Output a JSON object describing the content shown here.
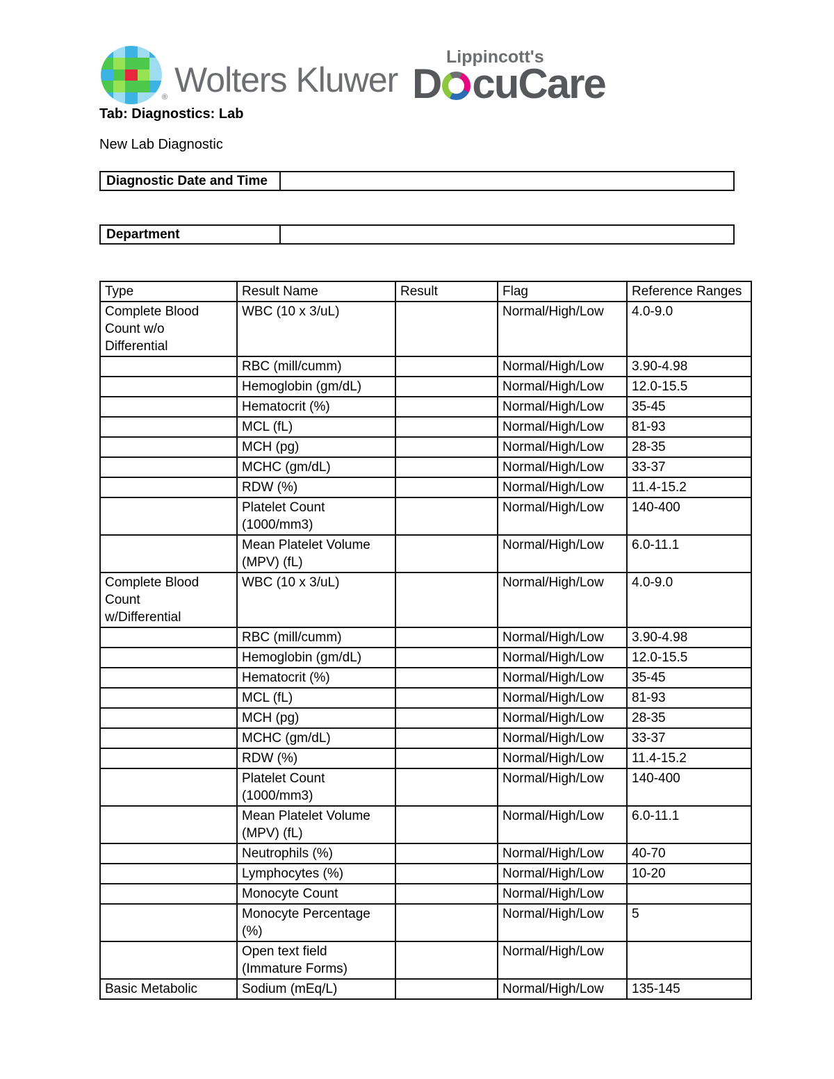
{
  "header": {
    "brand": "Wolters Kluwer",
    "registered": "®",
    "product_top": "Lippincott's",
    "docucare_d": "D",
    "docucare_rest": "cuCare",
    "tab_line": "Tab: Diagnostics: Lab",
    "page_title": "New Lab Diagnostic"
  },
  "logo": {
    "text_gray": "#6d6e71",
    "docucare_gray": "#57585b",
    "ring_colors": [
      "#6f7073",
      "#e5097f",
      "#2a6db5",
      "#8dc63f"
    ],
    "globe_colors": {
      "b": "#3db3e3",
      "lb": "#9edcf2",
      "g": "#4cc84c",
      "lg": "#97e354",
      "r": "#e8283c"
    },
    "globe_pattern": [
      [
        "b",
        "lb",
        "b",
        "lb",
        "b"
      ],
      [
        "g",
        "lg",
        "g",
        "g",
        "lb"
      ],
      [
        "b",
        "g",
        "r",
        "lg",
        "lb"
      ],
      [
        "g",
        "lg",
        "g",
        "g",
        "b"
      ],
      [
        "b",
        "lb",
        "b",
        "lb",
        "lb"
      ]
    ]
  },
  "fields": [
    {
      "label": "Diagnostic Date and Time",
      "value": ""
    },
    {
      "label": "Department",
      "value": ""
    }
  ],
  "table": {
    "columns": [
      "Type",
      "Result Name",
      "Result",
      "Flag",
      "Reference Ranges"
    ],
    "rows": [
      {
        "type": "Complete Blood\nCount w/o\nDifferential",
        "result_name": "WBC (10 x 3/uL)",
        "result": "",
        "flag": "Normal/High/Low",
        "range": "4.0-9.0"
      },
      {
        "type": "",
        "result_name": "RBC (mill/cumm)",
        "result": "",
        "flag": "Normal/High/Low",
        "range": "3.90-4.98"
      },
      {
        "type": "",
        "result_name": "Hemoglobin (gm/dL)",
        "result": "",
        "flag": "Normal/High/Low",
        "range": "12.0-15.5"
      },
      {
        "type": "",
        "result_name": "Hematocrit (%)",
        "result": "",
        "flag": "Normal/High/Low",
        "range": "35-45"
      },
      {
        "type": "",
        "result_name": "MCL (fL)",
        "result": "",
        "flag": "Normal/High/Low",
        "range": "81-93"
      },
      {
        "type": "",
        "result_name": "MCH (pg)",
        "result": "",
        "flag": "Normal/High/Low",
        "range": "28-35"
      },
      {
        "type": "",
        "result_name": "MCHC (gm/dL)",
        "result": "",
        "flag": "Normal/High/Low",
        "range": "33-37"
      },
      {
        "type": "",
        "result_name": "RDW (%)",
        "result": "",
        "flag": "Normal/High/Low",
        "range": "11.4-15.2"
      },
      {
        "type": "",
        "result_name": "Platelet Count\n(1000/mm3)",
        "result": "",
        "flag": "Normal/High/Low",
        "range": "140-400"
      },
      {
        "type": "",
        "result_name": "Mean Platelet Volume\n(MPV) (fL)",
        "result": "",
        "flag": "Normal/High/Low",
        "range": "6.0-11.1"
      },
      {
        "type": "Complete Blood\nCount\nw/Differential",
        "result_name": "WBC (10 x 3/uL)",
        "result": "",
        "flag": "Normal/High/Low",
        "range": "4.0-9.0"
      },
      {
        "type": "",
        "result_name": "RBC (mill/cumm)",
        "result": "",
        "flag": "Normal/High/Low",
        "range": "3.90-4.98"
      },
      {
        "type": "",
        "result_name": "Hemoglobin (gm/dL)",
        "result": "",
        "flag": "Normal/High/Low",
        "range": "12.0-15.5"
      },
      {
        "type": "",
        "result_name": "Hematocrit (%)",
        "result": "",
        "flag": "Normal/High/Low",
        "range": "35-45"
      },
      {
        "type": "",
        "result_name": "MCL (fL)",
        "result": "",
        "flag": "Normal/High/Low",
        "range": "81-93"
      },
      {
        "type": "",
        "result_name": "MCH (pg)",
        "result": "",
        "flag": "Normal/High/Low",
        "range": "28-35"
      },
      {
        "type": "",
        "result_name": "MCHC (gm/dL)",
        "result": "",
        "flag": "Normal/High/Low",
        "range": "33-37"
      },
      {
        "type": "",
        "result_name": "RDW (%)",
        "result": "",
        "flag": "Normal/High/Low",
        "range": "11.4-15.2"
      },
      {
        "type": "",
        "result_name": "Platelet Count\n(1000/mm3)",
        "result": "",
        "flag": "Normal/High/Low",
        "range": "140-400"
      },
      {
        "type": "",
        "result_name": "Mean Platelet Volume\n(MPV) (fL)",
        "result": "",
        "flag": "Normal/High/Low",
        "range": "6.0-11.1"
      },
      {
        "type": "",
        "result_name": "Neutrophils (%)",
        "result": "",
        "flag": "Normal/High/Low",
        "range": "40-70"
      },
      {
        "type": "",
        "result_name": "Lymphocytes (%)",
        "result": "",
        "flag": "Normal/High/Low",
        "range": "10-20"
      },
      {
        "type": "",
        "result_name": "Monocyte Count",
        "result": "",
        "flag": "Normal/High/Low",
        "range": ""
      },
      {
        "type": "",
        "result_name": "Monocyte Percentage\n(%)",
        "result": "",
        "flag": "Normal/High/Low",
        "range": "5"
      },
      {
        "type": "",
        "result_name": "Open text field\n(Immature Forms)",
        "result": "",
        "flag": "Normal/High/Low",
        "range": ""
      },
      {
        "type": "Basic Metabolic",
        "result_name": "Sodium (mEq/L)",
        "result": "",
        "flag": "Normal/High/Low",
        "range": "135-145"
      }
    ]
  }
}
